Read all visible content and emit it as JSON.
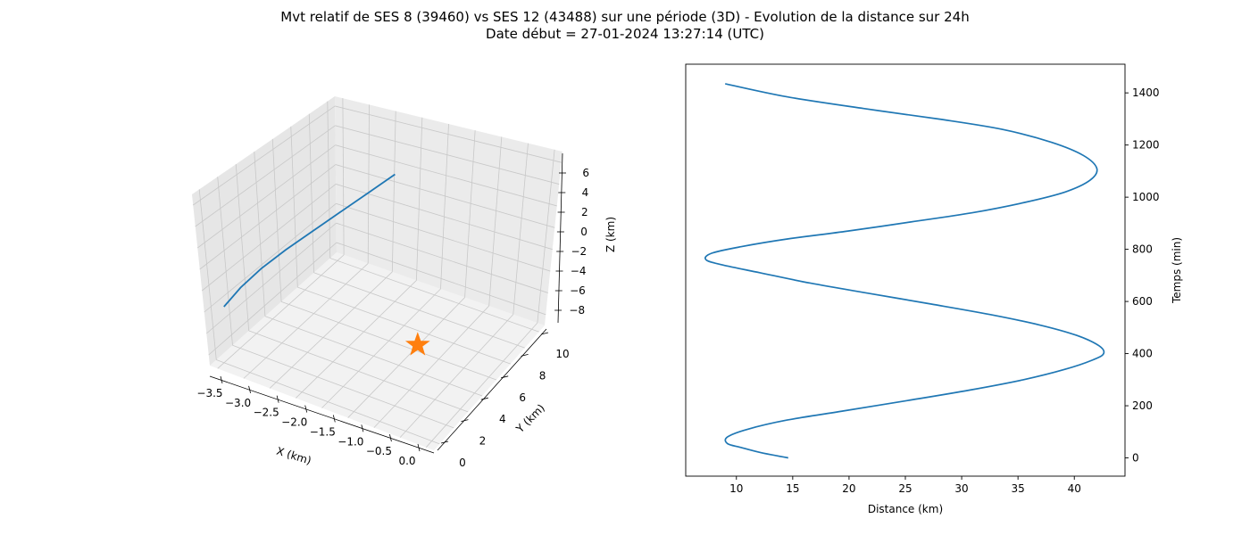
{
  "title": {
    "line1": "Mvt relatif de SES 8 (39460) vs SES 12 (43488) sur une période (3D) - Evolution de la distance sur 24h",
    "line2": "Date début = 27-01-2024 13:27:14 (UTC)"
  },
  "colors": {
    "series": "#1f77b4",
    "marker": "#ff7f0e",
    "pane": "#f2f2f2",
    "pane_side": "#e6e6e6",
    "grid": "#c8c8c8"
  },
  "chart_data": [
    {
      "type": "line3d",
      "xlabel": "X (km)",
      "ylabel": "Y (km)",
      "zlabel": "Z (km)",
      "xlim": [
        -3.7,
        0.2
      ],
      "ylim": [
        -0.5,
        11.5
      ],
      "zlim": [
        -9,
        7
      ],
      "x_ticks": [
        "−3.5",
        "−3.0",
        "−2.5",
        "−2.0",
        "−1.5",
        "−1.0",
        "−0.5",
        "0.0"
      ],
      "y_ticks": [
        "0",
        "2",
        "4",
        "6",
        "8",
        "10"
      ],
      "z_ticks": [
        "6",
        "4",
        "2",
        "0",
        "−2",
        "−4",
        "−6",
        "−8"
      ],
      "series": [
        {
          "x": [
            -3.5,
            -3.35,
            -3.15,
            -2.9,
            -2.6,
            -2.3,
            -2.0,
            -1.7
          ],
          "y": [
            0.3,
            1.2,
            2.2,
            3.3,
            4.4,
            5.5,
            6.6,
            7.7
          ],
          "z": [
            -3.8,
            -2.5,
            -1.2,
            0.1,
            1.5,
            2.9,
            4.3,
            5.7
          ]
        }
      ],
      "marker": {
        "shape": "star",
        "x": 0.0,
        "y": 0.0,
        "z": 0.0
      }
    },
    {
      "type": "line",
      "xlabel": "Distance (km)",
      "ylabel": "Temps (min)",
      "xlim": [
        5.5,
        44.5
      ],
      "ylim": [
        -70,
        1510
      ],
      "x_ticks": [
        10,
        15,
        20,
        25,
        30,
        35,
        40
      ],
      "y_ticks": [
        0,
        200,
        400,
        600,
        800,
        1000,
        1200,
        1400
      ],
      "series": [
        {
          "x": [
            14.6,
            12.2,
            10.4,
            9.2,
            9.2,
            11.0,
            14.5,
            19.5,
            25.2,
            30.7,
            35.5,
            39.2,
            41.6,
            42.6,
            42.2,
            40.2,
            36.9,
            32.5,
            27.3,
            21.9,
            16.6,
            12.1,
            8.8,
            7.3,
            7.8,
            10.4,
            14.6,
            19.9,
            25.5,
            30.9,
            35.6,
            39.2,
            41.4,
            42.0,
            40.8,
            38.0,
            33.6,
            27.9,
            21.3,
            14.5,
            9.0
          ],
          "y": [
            0,
            20,
            40,
            55,
            80,
            110,
            145,
            180,
            220,
            260,
            300,
            340,
            375,
            400,
            430,
            470,
            510,
            550,
            590,
            630,
            670,
            710,
            740,
            760,
            785,
            810,
            840,
            870,
            905,
            940,
            980,
            1020,
            1065,
            1110,
            1160,
            1210,
            1260,
            1300,
            1340,
            1385,
            1435
          ]
        }
      ]
    }
  ]
}
